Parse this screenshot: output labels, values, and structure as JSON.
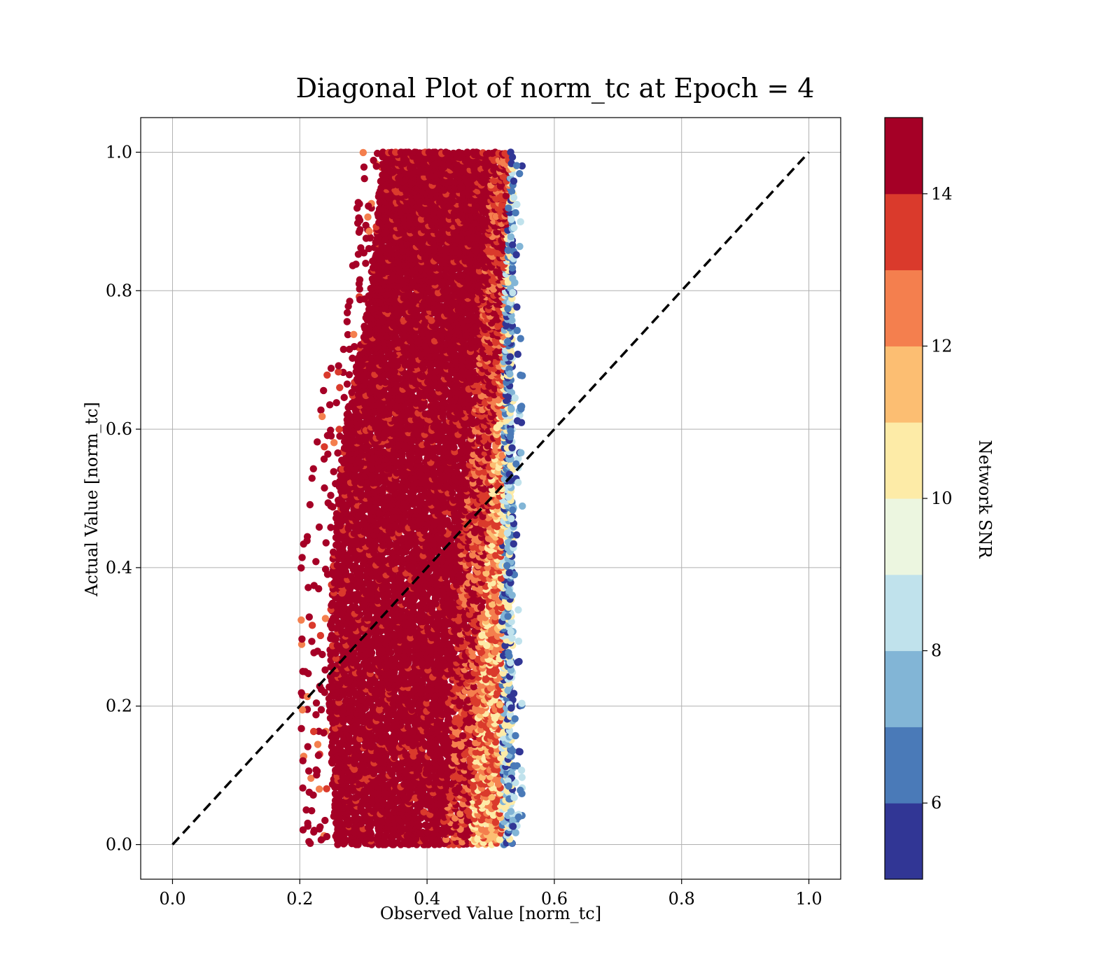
{
  "chart_data": {
    "type": "scatter",
    "title": "Diagonal Plot of norm_tc at Epoch = 4",
    "xlabel": "Observed Value [norm_tc]",
    "ylabel": "Actual Value [norm_tc]",
    "xlim": [
      -0.05,
      1.05
    ],
    "ylim": [
      -0.05,
      1.05
    ],
    "xticks": [
      "0.0",
      "0.2",
      "0.4",
      "0.6",
      "0.8",
      "1.0"
    ],
    "yticks": [
      "0.0",
      "0.2",
      "0.4",
      "0.6",
      "0.8",
      "1.0"
    ],
    "grid": true,
    "reference_line": {
      "style": "dashed",
      "color": "#000000",
      "from": [
        0,
        0
      ],
      "to": [
        1,
        1
      ]
    },
    "colorbar": {
      "label": "Network SNR",
      "range": [
        5,
        15
      ],
      "ticks": [
        "6",
        "8",
        "10",
        "12",
        "14"
      ],
      "tick_values": [
        6,
        8,
        10,
        12,
        14
      ],
      "colors": [
        "#313695",
        "#4575b4",
        "#74add1",
        "#abd9e9",
        "#e0f3f8",
        "#ffffbf",
        "#fee090",
        "#fdae61",
        "#f46d43",
        "#d73027",
        "#a50026"
      ],
      "bands": [
        "#313695",
        "#4a7ab8",
        "#82b5d6",
        "#c0e2ec",
        "#ecf6e0",
        "#fdeba7",
        "#fcbe72",
        "#f47f4e",
        "#da3a2c",
        "#a50026"
      ]
    },
    "scatter_summary": {
      "points_approx": 40000,
      "x_lower_edge": {
        "y": [
          0.0,
          0.2,
          0.4,
          0.6,
          0.8,
          1.0
        ],
        "x": [
          0.255,
          0.245,
          0.25,
          0.27,
          0.31,
          0.33
        ]
      },
      "x_upper_edge": [
        0.535,
        0.545
      ],
      "dominant_color": "#a50026",
      "color_gradient_note": "SNR decreases toward the right edge"
    }
  }
}
